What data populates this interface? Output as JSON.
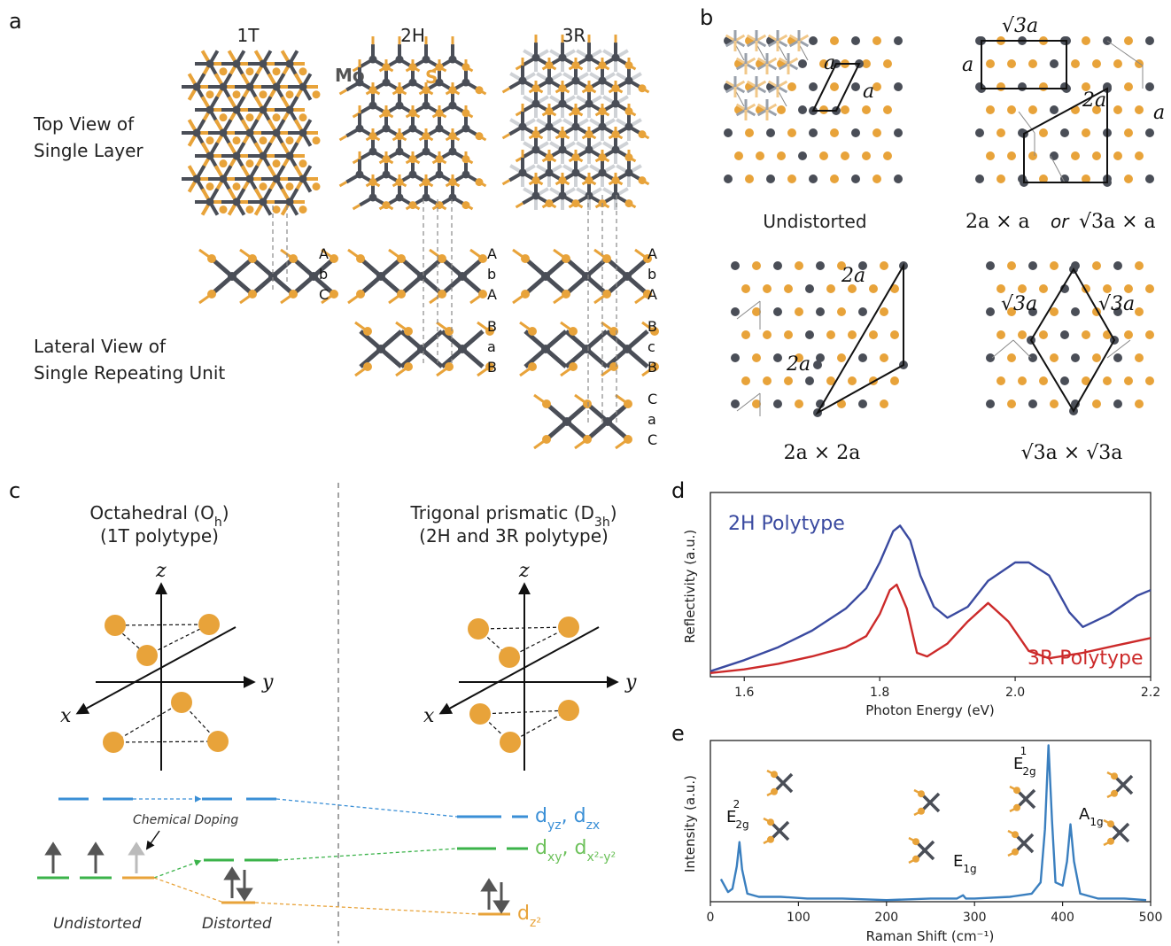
{
  "panel_a": {
    "label": "a",
    "polytypes": [
      "1T",
      "2H",
      "3R"
    ],
    "mo_label": "Mo",
    "s_label": "S",
    "row_top": [
      "Top View of",
      "Single Layer"
    ],
    "row_lateral": [
      "Lateral View of",
      "Single Repeating Unit"
    ],
    "stack_1T": [
      "A",
      "b",
      "C"
    ],
    "stack_2H_1": [
      "A",
      "b",
      "A"
    ],
    "stack_2H_2": [
      "B",
      "a",
      "B"
    ],
    "stack_3R_1": [
      "A",
      "b",
      "A"
    ],
    "stack_3R_2": [
      "B",
      "c",
      "B"
    ],
    "stack_3R_3": [
      "C",
      "a",
      "C"
    ]
  },
  "panel_b": {
    "label": "b",
    "undistorted": "Undistorted",
    "cap2": [
      "2a × a",
      "or",
      "√3a × a"
    ],
    "cap3": "2a × 2a",
    "cap4": "√3a × √3a",
    "a": "a",
    "two_a": "2a",
    "sqrt3a": "√3a"
  },
  "panel_c": {
    "label": "c",
    "oct_title": [
      "Octahedral (O",
      "h",
      ")"
    ],
    "oct_sub": "(1T polytype)",
    "tri_title": [
      "Trigonal prismatic (D",
      "3h",
      ")"
    ],
    "tri_sub": "(2H and 3R polytype)",
    "axes": {
      "x": "x",
      "y": "y",
      "z": "z"
    },
    "chemical_doping": "Chemical Doping",
    "undistorted": "Undistorted",
    "distorted": "Distorted",
    "orbitals": {
      "dyz": [
        "d",
        "yz",
        ", d",
        "zx"
      ],
      "dxy": [
        "d",
        "xy",
        ", d",
        "x²-y²"
      ],
      "dz2": [
        "d",
        "z²"
      ]
    }
  },
  "panel_d": {
    "label": "d",
    "chart_data": {
      "type": "line",
      "xlabel": "Photon Energy (eV)",
      "ylabel": "Reflectivity (a.u.)",
      "xlim": [
        1.55,
        2.2
      ],
      "xticks": [
        1.6,
        1.8,
        2.0,
        2.2
      ],
      "xtick_labels": [
        "1.6",
        "1.8",
        "2.0",
        "2.2"
      ],
      "ylim": [
        0,
        1
      ],
      "series": [
        {
          "name": "2H Polytype",
          "color": "#3a4aa0",
          "x": [
            1.55,
            1.6,
            1.65,
            1.7,
            1.75,
            1.78,
            1.8,
            1.82,
            1.83,
            1.845,
            1.86,
            1.88,
            1.9,
            1.93,
            1.96,
            2.0,
            2.02,
            2.05,
            2.08,
            2.1,
            2.14,
            2.18,
            2.2
          ],
          "y": [
            0.03,
            0.09,
            0.16,
            0.25,
            0.37,
            0.48,
            0.62,
            0.79,
            0.82,
            0.74,
            0.55,
            0.38,
            0.32,
            0.38,
            0.52,
            0.62,
            0.62,
            0.55,
            0.35,
            0.27,
            0.34,
            0.44,
            0.47
          ]
        },
        {
          "name": "3R Polytype",
          "color": "#cc2a2a",
          "x": [
            1.55,
            1.6,
            1.65,
            1.7,
            1.75,
            1.78,
            1.8,
            1.815,
            1.825,
            1.84,
            1.855,
            1.87,
            1.9,
            1.93,
            1.96,
            1.99,
            2.02,
            2.05,
            2.1,
            2.15,
            2.2
          ],
          "y": [
            0.02,
            0.04,
            0.07,
            0.11,
            0.16,
            0.22,
            0.34,
            0.47,
            0.5,
            0.37,
            0.13,
            0.11,
            0.18,
            0.3,
            0.4,
            0.3,
            0.14,
            0.1,
            0.13,
            0.17,
            0.21
          ]
        }
      ]
    }
  },
  "panel_e": {
    "label": "e",
    "chart_data": {
      "type": "line",
      "xlabel": "Raman Shift (cm⁻¹)",
      "ylabel": "Intensity (a.u.)",
      "xlim": [
        0,
        500
      ],
      "xticks": [
        0,
        100,
        200,
        300,
        400,
        500
      ],
      "xtick_labels": [
        "0",
        "100",
        "200",
        "300",
        "400",
        "500"
      ],
      "ylim": [
        0,
        1
      ],
      "series": [
        {
          "name": "",
          "color": "#3a7fbf",
          "x": [
            12,
            20,
            25,
            30,
            33,
            36,
            42,
            55,
            80,
            110,
            150,
            200,
            250,
            280,
            287,
            290,
            300,
            340,
            365,
            375,
            380,
            384,
            388,
            392,
            400,
            405,
            409,
            413,
            420,
            440,
            470,
            495
          ],
          "y": [
            0.14,
            0.06,
            0.08,
            0.22,
            0.37,
            0.2,
            0.05,
            0.03,
            0.03,
            0.02,
            0.02,
            0.01,
            0.02,
            0.02,
            0.04,
            0.02,
            0.02,
            0.03,
            0.05,
            0.12,
            0.45,
            0.97,
            0.5,
            0.12,
            0.1,
            0.25,
            0.48,
            0.25,
            0.05,
            0.02,
            0.02,
            0.01
          ]
        }
      ],
      "annotations": {
        "e2g2": [
          "E",
          "2g",
          "2"
        ],
        "e1g": [
          "E",
          "1g"
        ],
        "e2g1": [
          "E",
          "2g",
          "1"
        ],
        "a1g": [
          "A",
          "1g"
        ]
      }
    }
  }
}
